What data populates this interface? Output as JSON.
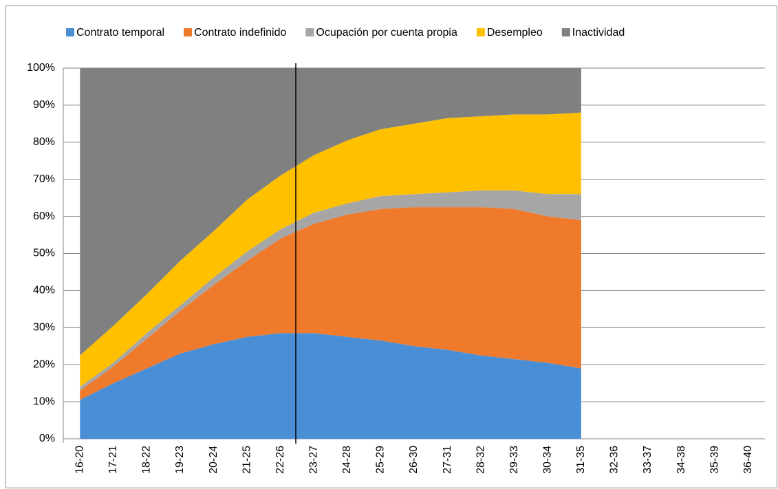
{
  "chart_data": {
    "type": "area",
    "stacked": true,
    "categories": [
      "16-20",
      "17-21",
      "18-22",
      "19-23",
      "20-24",
      "21-25",
      "22-26",
      "23-27",
      "24-28",
      "25-29",
      "26-30",
      "27-31",
      "28-32",
      "29-33",
      "30-34",
      "31-35",
      "32-36",
      "33-37",
      "34-38",
      "35-39",
      "36-40"
    ],
    "series": [
      {
        "name": "Contrato temporal",
        "color": "#4a8fd6",
        "values": [
          10.5,
          15,
          19,
          23,
          25.5,
          27.5,
          28.5,
          28.5,
          27.5,
          26.5,
          25,
          24,
          22.5,
          21.5,
          20.5,
          19,
          null,
          null,
          null,
          null,
          null
        ]
      },
      {
        "name": "Contrato indefinido",
        "color": "#f07a2c",
        "values": [
          2.5,
          4.5,
          8,
          11.5,
          16,
          20.5,
          25.5,
          29.5,
          33,
          35.5,
          37.5,
          38.5,
          40,
          40.5,
          39.5,
          40,
          null,
          null,
          null,
          null,
          null
        ]
      },
      {
        "name": "Ocupación por cuenta propia",
        "color": "#a6a6a6",
        "values": [
          1,
          1,
          1.5,
          1.5,
          2,
          2.5,
          2.5,
          3,
          3,
          3.5,
          3.5,
          4,
          4.5,
          5,
          6,
          7,
          null,
          null,
          null,
          null,
          null
        ]
      },
      {
        "name": "Desempleo",
        "color": "#ffc000",
        "values": [
          8.5,
          10,
          10.5,
          12,
          12.5,
          14,
          14.5,
          15.5,
          17,
          18,
          19,
          20,
          20,
          20.5,
          21.5,
          22,
          null,
          null,
          null,
          null,
          null
        ]
      },
      {
        "name": "Inactividad",
        "color": "#808080",
        "values": [
          77.5,
          69.5,
          61,
          52,
          44,
          35.5,
          29,
          23.5,
          19.5,
          16.5,
          15,
          13.5,
          13,
          12.5,
          12.5,
          12,
          null,
          null,
          null,
          null,
          null
        ]
      }
    ],
    "ylim": [
      0,
      100
    ],
    "yticks": [
      {
        "value": 0,
        "label": "0%"
      },
      {
        "value": 10,
        "label": "10%"
      },
      {
        "value": 20,
        "label": "20%"
      },
      {
        "value": 30,
        "label": "30%"
      },
      {
        "value": 40,
        "label": "40%"
      },
      {
        "value": 50,
        "label": "50%"
      },
      {
        "value": 60,
        "label": "60%"
      },
      {
        "value": 70,
        "label": "70%"
      },
      {
        "value": 80,
        "label": "80%"
      },
      {
        "value": 90,
        "label": "90%"
      },
      {
        "value": 100,
        "label": "100%"
      }
    ],
    "grid": true,
    "legend": "top"
  }
}
